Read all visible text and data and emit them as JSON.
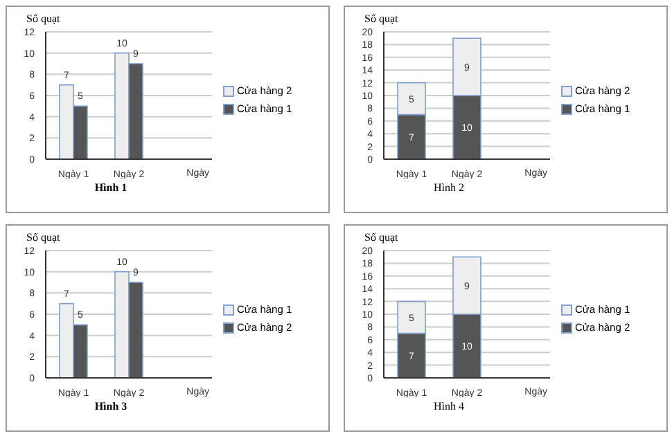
{
  "chart_data": [
    {
      "type": "bar",
      "title": "Hình 1",
      "xlabel": "Ngày",
      "ylabel": "Số quạt",
      "categories": [
        "Ngày 1",
        "Ngày 2"
      ],
      "series": [
        {
          "name": "Cửa hàng 2",
          "color": "#eeeeee",
          "values": [
            7,
            10
          ]
        },
        {
          "name": "Cửa hàng 1",
          "color": "#555555",
          "values": [
            5,
            9
          ]
        }
      ],
      "ylim": [
        0,
        12
      ],
      "yticks": [
        0,
        2,
        4,
        6,
        8,
        10,
        12
      ],
      "grid": "y",
      "legend": "right",
      "data_labels": true
    },
    {
      "type": "bar",
      "stacked": true,
      "title": "Hình 2",
      "xlabel": "Ngày",
      "ylabel": "Số quạt",
      "categories": [
        "Ngày 1",
        "Ngày 2"
      ],
      "series": [
        {
          "name": "Cửa hàng 1",
          "color": "#555555",
          "values": [
            7,
            10
          ]
        },
        {
          "name": "Cửa hàng 2",
          "color": "#eeeeee",
          "values": [
            5,
            9
          ]
        }
      ],
      "ylim": [
        0,
        20
      ],
      "yticks": [
        0,
        2,
        4,
        6,
        8,
        10,
        12,
        14,
        16,
        18,
        20
      ],
      "grid": "y",
      "legend": "right",
      "data_labels": true
    },
    {
      "type": "bar",
      "title": "Hình 3",
      "xlabel": "Ngày",
      "ylabel": "Số quạt",
      "categories": [
        "Ngày 1",
        "Ngày 2"
      ],
      "series": [
        {
          "name": "Cửa hàng 1",
          "color": "#eeeeee",
          "values": [
            7,
            10
          ]
        },
        {
          "name": "Cửa hàng 2",
          "color": "#555555",
          "values": [
            5,
            9
          ]
        }
      ],
      "ylim": [
        0,
        12
      ],
      "yticks": [
        0,
        2,
        4,
        6,
        8,
        10,
        12
      ],
      "grid": "y",
      "legend": "right",
      "data_labels": true
    },
    {
      "type": "bar",
      "stacked": true,
      "title": "Hình 4",
      "xlabel": "Ngày",
      "ylabel": "Số quạt",
      "categories": [
        "Ngày 1",
        "Ngày 2"
      ],
      "series": [
        {
          "name": "Cửa hàng 2",
          "color": "#555555",
          "values": [
            7,
            10
          ]
        },
        {
          "name": "Cửa hàng 1",
          "color": "#eeeeee",
          "values": [
            5,
            9
          ]
        }
      ],
      "ylim": [
        0,
        20
      ],
      "yticks": [
        0,
        2,
        4,
        6,
        8,
        10,
        12,
        14,
        16,
        18,
        20
      ],
      "grid": "y",
      "legend": "right",
      "data_labels": true
    }
  ]
}
